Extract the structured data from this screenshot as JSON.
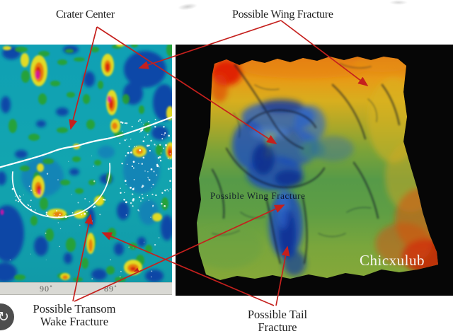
{
  "figure": {
    "annotations": {
      "crater_center": "Crater Center",
      "possible_wing_fracture": "Possible Wing Fracture",
      "possible_transom_line1": "Possible Transom",
      "possible_transom_line2": "Wake Fracture",
      "possible_tail_line1": "Possible Tail",
      "possible_tail_line2": "Fracture"
    },
    "left_map": {
      "kind": "gravity anomaly map with coastline and cenote ring",
      "x_ticks": [
        "90˚",
        "89˚"
      ]
    },
    "right_map": {
      "kind": "3D terrain relief on black background",
      "inmap_label": "Possible Wing Fracture",
      "site_name": "Chicxulub"
    },
    "colors": {
      "arrow": "#c5201d",
      "left_map_base": "#11a1b1",
      "terrain_high": "#e07a18",
      "terrain_low": "#1a50c2",
      "background": "#ffffff"
    }
  },
  "ui": {
    "bottom_left_button_glyph": "↻"
  }
}
